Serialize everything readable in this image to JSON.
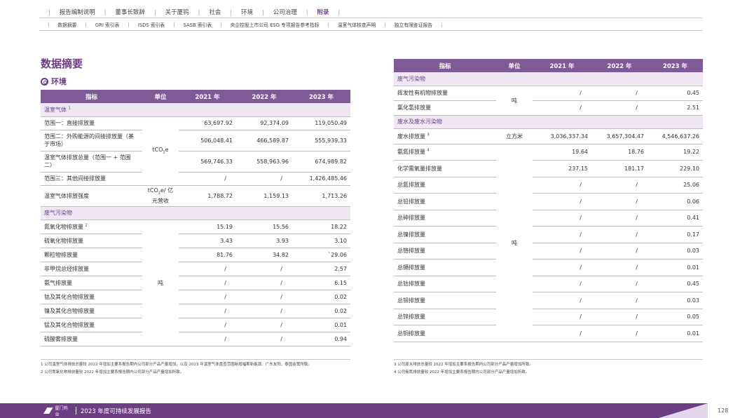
{
  "nav_primary": [
    "报告编制说明",
    "董事长致辞",
    "关于厦钨",
    "社会",
    "环境",
    "公司治理",
    "附录"
  ],
  "nav_primary_active": 6,
  "nav_secondary": [
    "数据摘要",
    "GRI 索引表",
    "ISDS 索引表",
    "SASB 索引表",
    "央企控股上市公司 ESG 专项报告参考指标",
    "温室气体核查声明",
    "独立有限鉴证报告"
  ],
  "page_title": "数据摘要",
  "section_title": "环境",
  "table_headers": [
    "指标",
    "单位",
    "2021 年",
    "2022 年",
    "2023 年"
  ],
  "left_table": {
    "cat_ghg": "温室气体",
    "cat_ghg_sup": "1",
    "ghg_unit_base": "tCO",
    "ghg_unit_sub": "2",
    "ghg_unit_tail": "e",
    "ghg_rows": [
      {
        "name": "范围一：直接排放量",
        "v2021": "63,697.92",
        "v2022": "92,374.09",
        "v2023": "119,050.49"
      },
      {
        "name": "范围二：外购能源的间接排放量（基于市场）",
        "v2021": "506,048.41",
        "v2022": "466,589.87",
        "v2023": "555,939.33"
      },
      {
        "name": "温室气体排放总量（范围一 + 范围二）",
        "v2021": "569,746.33",
        "v2022": "558,963.96",
        "v2023": "674,989.82"
      },
      {
        "name": "范围三：其他间接排放量",
        "v2021": "/",
        "v2022": "/",
        "v2023": "1,426,485.46"
      }
    ],
    "intensity": {
      "name": "温室气体排放强度",
      "unit_base": "tCO",
      "unit_sub": "2",
      "unit_tail": "e/ 亿元营收",
      "v2021": "1,788.72",
      "v2022": "1,159.13",
      "v2023": "1,713.26"
    },
    "cat_gas": "废气污染物",
    "gas_unit": "吨",
    "gas_rows": [
      {
        "name": "氮氧化物排放量",
        "sup": "2",
        "v2021": "15.19",
        "v2022": "15.56",
        "v2023": "18.22"
      },
      {
        "name": "硫氧化物排放量",
        "sup": "",
        "v2021": "3.43",
        "v2022": "3.93",
        "v2023": "3.10"
      },
      {
        "name": "颗粒物排放量",
        "sup": "",
        "v2021": "81.76",
        "v2022": "34.82",
        "v2023": "`29.06"
      },
      {
        "name": "非甲烷总烃排放量",
        "sup": "",
        "v2021": "/",
        "v2022": "/",
        "v2023": "2.57"
      },
      {
        "name": "氨气排放量",
        "sup": "",
        "v2021": "/",
        "v2022": "/",
        "v2023": "6.15"
      },
      {
        "name": "钴及其化合物排放量",
        "sup": "",
        "v2021": "/",
        "v2022": "/",
        "v2023": "0.02"
      },
      {
        "name": "镍及其化合物排放量",
        "sup": "",
        "v2021": "/",
        "v2022": "/",
        "v2023": "0.02"
      },
      {
        "name": "锰及其化合物排放量",
        "sup": "",
        "v2021": "/",
        "v2022": "/",
        "v2023": "0.01"
      },
      {
        "name": "硫酸雾排放量",
        "sup": "",
        "v2021": "/",
        "v2022": "/",
        "v2023": "0.94"
      }
    ]
  },
  "right_table": {
    "cat_gas": "废气污染物",
    "gas_unit": "吨",
    "gas_rows": [
      {
        "name": "挥发性有机物排放量",
        "v2021": "/",
        "v2022": "/",
        "v2023": "0.45"
      },
      {
        "name": "氯化氢排放量",
        "v2021": "/",
        "v2022": "/",
        "v2023": "2.51"
      }
    ],
    "cat_water": "废水及废水污染物",
    "water_row": {
      "name": "废水排放量",
      "sup": "3",
      "unit": "立方米",
      "v2021": "3,036,337.34",
      "v2022": "3,657,304.47",
      "v2023": "4,546,637.26"
    },
    "pollutant_unit": "吨",
    "pollutant_rows": [
      {
        "name": "氨氮排放量",
        "sup": "4",
        "v2021": "19.64",
        "v2022": "18.76",
        "v2023": "19.22"
      },
      {
        "name": "化学需氧量排放量",
        "sup": "",
        "v2021": "237.15",
        "v2022": "181.17",
        "v2023": "229.10"
      },
      {
        "name": "总氮排放量",
        "sup": "",
        "v2021": "/",
        "v2022": "/",
        "v2023": "25.06"
      },
      {
        "name": "总铅排放量",
        "sup": "",
        "v2021": "/",
        "v2022": "/",
        "v2023": "0.06"
      },
      {
        "name": "总砷排放量",
        "sup": "",
        "v2021": "/",
        "v2022": "/",
        "v2023": "0.41"
      },
      {
        "name": "总镍排放量",
        "sup": "",
        "v2021": "/",
        "v2022": "/",
        "v2023": "0.17"
      },
      {
        "name": "总铬排放量",
        "sup": "",
        "v2021": "/",
        "v2022": "/",
        "v2023": "0.03"
      },
      {
        "name": "总镉排放量",
        "sup": "",
        "v2021": "/",
        "v2022": "/",
        "v2023": "0.01"
      },
      {
        "name": "总钴排放量",
        "sup": "",
        "v2021": "/",
        "v2022": "/",
        "v2023": "0.45"
      },
      {
        "name": "总钼排放量",
        "sup": "",
        "v2021": "/",
        "v2022": "/",
        "v2023": "0.03"
      },
      {
        "name": "总锌排放量",
        "sup": "",
        "v2021": "/",
        "v2022": "/",
        "v2023": "0.05"
      },
      {
        "name": "总铜排放量",
        "sup": "",
        "v2021": "/",
        "v2022": "/",
        "v2023": "0.01"
      }
    ]
  },
  "footnotes_left": [
    "1  公司温室气体排放总量较 2022 年增加主要系报告期内公司部分产品产量增加，以及 2023 年温室气体盘查范围新增福斯新能源、广东友阳、泰国金鹭所致。",
    "2  公司氮氧化物排放量较 2022 年增加主要系报告期内公司部分产品产量增加所致。"
  ],
  "footnotes_right": [
    "3  公司废水排放总量较 2022 年增加主要系报告期内公司部分产品产量增加所致。",
    "4  公司氨氮排放量较 2022 年增加主要系报告期内公司部分产品产量增加所致。"
  ],
  "footer": {
    "logo_text": "厦门钨业",
    "report_title": "2023 年度可持续发展报告",
    "page_number": "128"
  },
  "colors": {
    "accent": "#6b3d82",
    "header_bg": "#7e5a97",
    "category_bg": "#efe7f4"
  }
}
